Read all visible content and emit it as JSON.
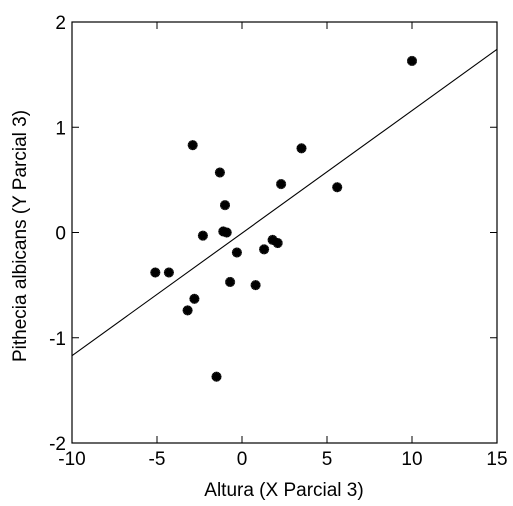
{
  "chart_data": {
    "type": "scatter",
    "title": "",
    "xlabel": "Altura (X Parcial 3)",
    "ylabel": "Pithecia albicans (Y Parcial 3)",
    "xlim": [
      -10,
      15
    ],
    "ylim": [
      -2,
      2
    ],
    "xticks": [
      -10,
      -5,
      0,
      5,
      10,
      15
    ],
    "xtick_labels": [
      "-10",
      "-5",
      "0",
      "5",
      "10",
      "15"
    ],
    "yticks": [
      -2,
      -1,
      0,
      1,
      2
    ],
    "ytick_labels": [
      "-2",
      "-1",
      "0",
      "1",
      "2"
    ],
    "grid": false,
    "marker": "asterisk",
    "series": [
      {
        "points": [
          {
            "x": 10.0,
            "y": 1.63
          },
          {
            "x": -2.9,
            "y": 0.83
          },
          {
            "x": 3.5,
            "y": 0.8
          },
          {
            "x": -1.3,
            "y": 0.57
          },
          {
            "x": 2.3,
            "y": 0.46
          },
          {
            "x": 5.6,
            "y": 0.43
          },
          {
            "x": -1.0,
            "y": 0.26
          },
          {
            "x": -1.1,
            "y": 0.01
          },
          {
            "x": -0.9,
            "y": 0.0
          },
          {
            "x": -2.3,
            "y": -0.03
          },
          {
            "x": 1.8,
            "y": -0.07
          },
          {
            "x": 2.1,
            "y": -0.1
          },
          {
            "x": 1.3,
            "y": -0.16
          },
          {
            "x": -0.3,
            "y": -0.19
          },
          {
            "x": -5.1,
            "y": -0.38
          },
          {
            "x": -4.3,
            "y": -0.38
          },
          {
            "x": -0.7,
            "y": -0.47
          },
          {
            "x": 0.8,
            "y": -0.5
          },
          {
            "x": -2.8,
            "y": -0.63
          },
          {
            "x": -3.2,
            "y": -0.74
          },
          {
            "x": -1.5,
            "y": -1.37
          }
        ]
      }
    ],
    "regression_line": {
      "x": [
        -10,
        15
      ],
      "y": [
        -1.17,
        1.74
      ]
    }
  }
}
